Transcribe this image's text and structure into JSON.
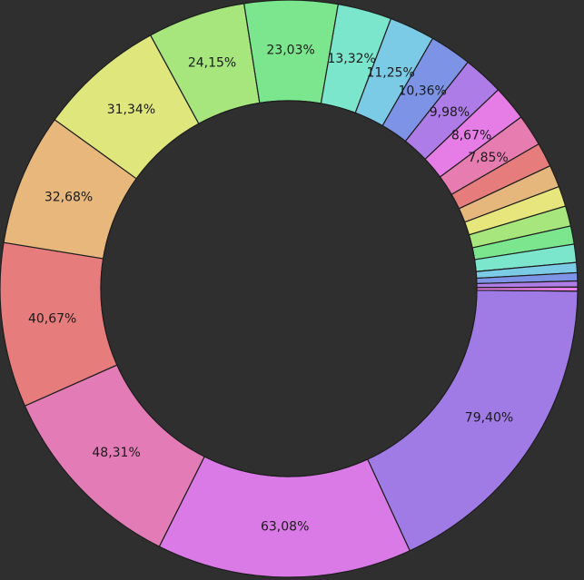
{
  "chart_data": {
    "type": "pie",
    "donut": true,
    "legend": "none",
    "slices": [
      {
        "value": 79.4,
        "label": "79,40%",
        "color": "#a07be6"
      },
      {
        "value": 63.08,
        "label": "63,08%",
        "color": "#da7ae6"
      },
      {
        "value": 48.31,
        "label": "48,31%",
        "color": "#e37bb6"
      },
      {
        "value": 40.67,
        "label": "40,67%",
        "color": "#e67c7c"
      },
      {
        "value": 32.68,
        "label": "32,68%",
        "color": "#e7b77c"
      },
      {
        "value": 31.34,
        "label": "31,34%",
        "color": "#dfe67c"
      },
      {
        "value": 24.15,
        "label": "24,15%",
        "color": "#a6e67c"
      },
      {
        "value": 23.03,
        "label": "23,03%",
        "color": "#7ce68e"
      },
      {
        "value": 13.32,
        "label": "13,32%",
        "color": "#7ce6cd"
      },
      {
        "value": 11.25,
        "label": "11,25%",
        "color": "#7ccbe6"
      },
      {
        "value": 10.36,
        "label": "10,36%",
        "color": "#7c93e6"
      },
      {
        "value": 9.98,
        "label": "9,98%",
        "color": "#ad7ce6"
      },
      {
        "value": 8.67,
        "label": "8,67%",
        "color": "#e67ce6"
      },
      {
        "value": 7.85,
        "label": "7,85%",
        "color": "#e67cb0"
      },
      {
        "value": 6.0,
        "label": "",
        "color": "#e67c7c"
      },
      {
        "value": 5.5,
        "label": "",
        "color": "#e6b77c"
      },
      {
        "value": 5.0,
        "label": "",
        "color": "#e6e67c"
      },
      {
        "value": 5.0,
        "label": "",
        "color": "#a6e67c"
      },
      {
        "value": 4.5,
        "label": "",
        "color": "#7ce68e"
      },
      {
        "value": 4.5,
        "label": "",
        "color": "#7ce6cd"
      },
      {
        "value": 2.5,
        "label": "",
        "color": "#7ccbe6"
      },
      {
        "value": 2.0,
        "label": "",
        "color": "#7c93e6"
      },
      {
        "value": 1.5,
        "label": "",
        "color": "#ad7ce6"
      },
      {
        "value": 1.0,
        "label": "",
        "color": "#e67ce6"
      }
    ]
  }
}
